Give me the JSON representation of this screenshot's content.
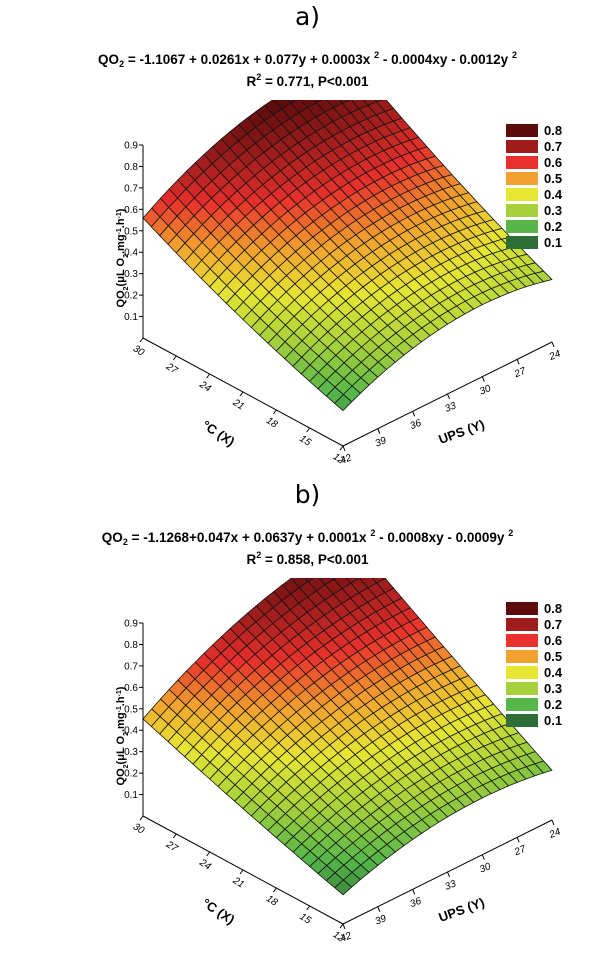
{
  "chart_data": [
    {
      "type": "surface",
      "panel_label": "a)",
      "equation_lhs": "QO",
      "equation_lhs_sub": "2",
      "equation_rhs_parts": [
        "= -1.1067 + 0.0261x + 0.077y + 0.0003x ",
        "2",
        " - 0.0004xy - 0.0012y ",
        "2"
      ],
      "stats_r": "R",
      "stats_r_sup": "2",
      "stats_rest": " = 0.771,  P<0.001",
      "coefficients": {
        "b0": -1.1067,
        "bx": 0.0261,
        "by": 0.077,
        "bxx": 0.0003,
        "bxy": -0.0004,
        "byy": -0.0012
      },
      "zlabel": "QO2 (µL O2.mg-1.h-1)",
      "zlabel_main": "QO",
      "zlabel_sub1": "2",
      "zlabel_mid": "(μL O",
      "zlabel_sub2": "2",
      "zlabel_unit1": ".mg",
      "zlabel_sup1": "-1",
      "zlabel_unit2": ".h",
      "zlabel_sup2": "-1",
      "zlabel_end": ")",
      "xlabel": "°C (X)",
      "ylabel": "UPS (Y)",
      "x_ticks": [
        "30",
        "27",
        "24",
        "21",
        "18",
        "15",
        "12"
      ],
      "y_ticks": [
        "42",
        "39",
        "36",
        "33",
        "30",
        "27",
        "24"
      ],
      "z_ticks": [
        "0.9",
        "0.8",
        "0.7",
        "0.6",
        "0.5",
        "0.4",
        "0.3",
        "0.2",
        "0.1"
      ],
      "xlim": [
        12,
        30
      ],
      "ylim": [
        24,
        42
      ],
      "zlim": [
        0,
        0.9
      ],
      "legend_position": "top-right",
      "legend": [
        {
          "label": "0.8",
          "color": "#5e0b0b"
        },
        {
          "label": "0.7",
          "color": "#9e1c1c"
        },
        {
          "label": "0.6",
          "color": "#e8302c"
        },
        {
          "label": "0.5",
          "color": "#f2a02e"
        },
        {
          "label": "0.4",
          "color": "#e6e633"
        },
        {
          "label": "0.3",
          "color": "#a7d13c"
        },
        {
          "label": "0.2",
          "color": "#55b649"
        },
        {
          "label": "0.1",
          "color": "#2c6e36"
        }
      ]
    },
    {
      "type": "surface",
      "panel_label": "b)",
      "equation_lhs": "QO",
      "equation_lhs_sub": "2",
      "equation_rhs_parts": [
        "= -1.1268+0.047x + 0.0637y + 0.0001x ",
        "2",
        " - 0.0008xy - 0.0009y ",
        "2"
      ],
      "stats_r": "R",
      "stats_r_sup": "2",
      "stats_rest": " = 0.858,  P<0.001",
      "coefficients": {
        "b0": -1.1268,
        "bx": 0.047,
        "by": 0.0637,
        "bxx": 0.0001,
        "bxy": -0.0008,
        "byy": -0.0009
      },
      "zlabel": "QO2 (µL O2.mg-1.h-1)",
      "zlabel_main": "QO",
      "zlabel_sub1": "2",
      "zlabel_mid": "(μL O",
      "zlabel_sub2": "2",
      "zlabel_unit1": ".mg",
      "zlabel_sup1": "-1",
      "zlabel_unit2": ".h",
      "zlabel_sup2": "-1",
      "zlabel_end": ")",
      "xlabel": "°C (X)",
      "ylabel": "UPS (Y)",
      "x_ticks": [
        "30",
        "27",
        "24",
        "21",
        "18",
        "15",
        "12"
      ],
      "y_ticks": [
        "42",
        "39",
        "36",
        "33",
        "30",
        "27",
        "24"
      ],
      "z_ticks": [
        "0.9",
        "0.8",
        "0.7",
        "0.6",
        "0.5",
        "0.4",
        "0.3",
        "0.2",
        "0.1"
      ],
      "xlim": [
        12,
        30
      ],
      "ylim": [
        24,
        42
      ],
      "zlim": [
        0,
        0.9
      ],
      "legend_position": "top-right",
      "legend": [
        {
          "label": "0.8",
          "color": "#5e0b0b"
        },
        {
          "label": "0.7",
          "color": "#9e1c1c"
        },
        {
          "label": "0.6",
          "color": "#e8302c"
        },
        {
          "label": "0.5",
          "color": "#f2a02e"
        },
        {
          "label": "0.4",
          "color": "#e6e633"
        },
        {
          "label": "0.3",
          "color": "#a7d13c"
        },
        {
          "label": "0.2",
          "color": "#55b649"
        },
        {
          "label": "0.1",
          "color": "#2c6e36"
        }
      ]
    }
  ]
}
